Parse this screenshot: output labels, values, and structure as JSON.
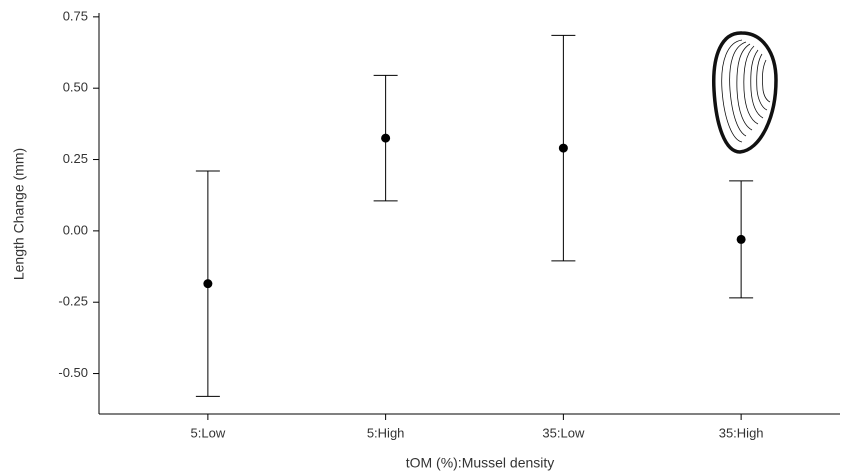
{
  "chart_data": {
    "type": "errorbar",
    "x_label": "tOM (%):Mussel density",
    "y_label": "Length Change (mm)",
    "categories": [
      "5:Low",
      "5:High",
      "35:Low",
      "35:High"
    ],
    "values": [
      -0.185,
      0.325,
      0.29,
      -0.03
    ],
    "errors": [
      0.395,
      0.22,
      0.395,
      0.205
    ],
    "color": "#000000",
    "ylim": [
      -0.64,
      0.76
    ],
    "yticks": [
      {
        "value": -0.5,
        "label": "-0.50"
      },
      -0.25,
      {
        "value": 0,
        "label": "0.00"
      },
      0.25,
      {
        "value": 0.5,
        "label": "0.50"
      },
      0.75
    ],
    "grid": false
  }
}
